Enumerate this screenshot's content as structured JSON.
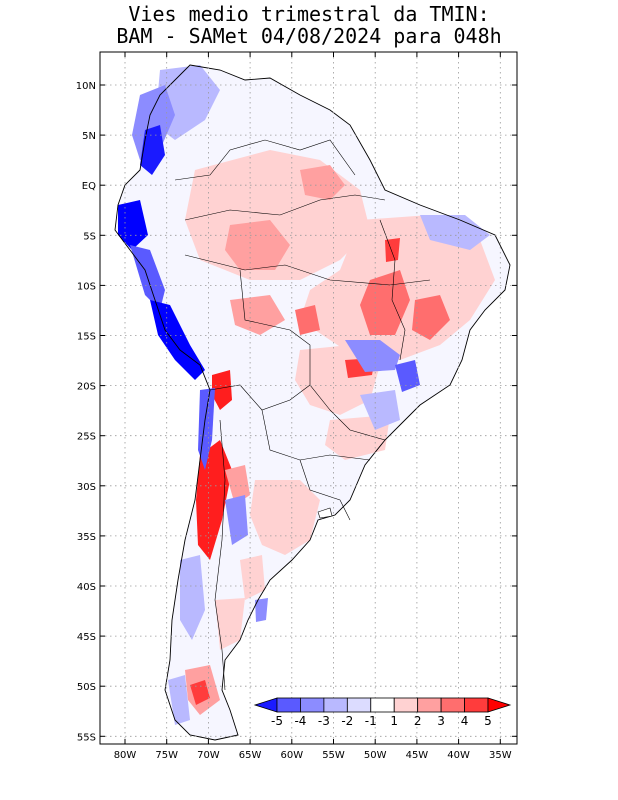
{
  "title_line1": "Vies medio trimestral da TMIN:",
  "title_line2": "BAM - SAMet 04/08/2024  para 048h",
  "lat_labels": [
    "10N",
    "5N",
    "EQ",
    "5S",
    "10S",
    "15S",
    "20S",
    "25S",
    "30S",
    "35S",
    "40S",
    "45S",
    "50S",
    "55S"
  ],
  "lon_labels": [
    "80W",
    "75W",
    "70W",
    "65W",
    "60W",
    "55W",
    "50W",
    "45W",
    "40W",
    "35W"
  ],
  "colorbar": {
    "labels": [
      "-5",
      "-4",
      "-3",
      "-2",
      "-1",
      "1",
      "2",
      "3",
      "4",
      "5"
    ],
    "colors": [
      "#1a1aff",
      "#5a5aff",
      "#8c8cff",
      "#b9b9ff",
      "#dcdcff",
      "#ffffff",
      "#ffd2d2",
      "#ffa0a0",
      "#ff6e6e",
      "#ff3c3c",
      "#ff0000"
    ]
  },
  "legend_colors": {
    "negative_strong": "#0000ff",
    "negative": "#8c8cff",
    "positive": "#ffa0a0",
    "positive_strong": "#ff1e1e",
    "coast": "#000000",
    "grid": "#9a9a9a"
  }
}
